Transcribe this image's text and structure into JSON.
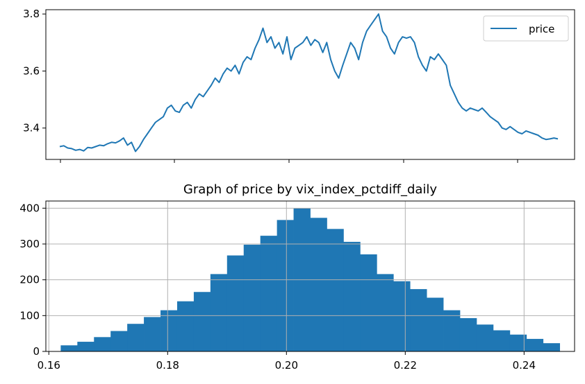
{
  "chart_data": [
    {
      "type": "line",
      "title": "",
      "xlabel": "",
      "ylabel": "",
      "legend": {
        "entries": [
          "price"
        ],
        "placement": "top-right"
      },
      "ylim": [
        3.29,
        3.815
      ],
      "yticks": [
        3.4,
        3.6,
        3.8
      ],
      "ytick_labels": [
        "3.4",
        "3.6",
        "3.8"
      ],
      "x_tick_count": 5,
      "grid": false,
      "line_color": "#1f77b4",
      "series": [
        {
          "name": "price",
          "x": [
            0,
            2,
            4,
            6,
            8,
            10,
            12,
            14,
            16,
            18,
            20,
            22,
            24,
            26,
            28,
            30,
            32,
            34,
            36,
            38,
            40,
            42,
            44,
            46,
            48,
            50,
            52,
            54,
            56,
            58,
            60,
            62,
            64,
            66,
            68,
            70,
            72,
            74,
            76,
            78,
            80,
            82,
            84,
            86,
            88,
            90,
            92,
            94,
            96,
            98,
            100,
            102,
            104,
            106,
            108,
            110,
            112,
            114,
            116,
            118,
            120,
            122,
            124,
            126,
            128,
            130,
            132,
            134,
            136,
            138,
            140,
            142,
            144,
            146,
            148,
            150,
            152,
            154,
            156,
            158,
            160,
            162,
            164,
            166,
            168,
            170,
            172,
            174,
            176,
            178,
            180,
            182,
            184,
            186,
            188,
            190,
            192,
            194,
            196,
            198,
            200,
            202,
            204,
            206,
            208,
            210,
            212,
            214,
            216,
            218,
            220,
            222,
            224,
            226,
            228,
            230,
            232,
            234,
            236,
            238,
            240,
            242,
            244,
            246,
            248,
            250
          ],
          "values": [
            3.335,
            3.338,
            3.33,
            3.328,
            3.322,
            3.325,
            3.32,
            3.332,
            3.33,
            3.335,
            3.34,
            3.338,
            3.345,
            3.35,
            3.348,
            3.355,
            3.365,
            3.34,
            3.35,
            3.318,
            3.335,
            3.36,
            3.38,
            3.4,
            3.42,
            3.43,
            3.44,
            3.47,
            3.48,
            3.46,
            3.455,
            3.48,
            3.49,
            3.47,
            3.5,
            3.52,
            3.51,
            3.53,
            3.55,
            3.575,
            3.56,
            3.59,
            3.61,
            3.6,
            3.62,
            3.59,
            3.63,
            3.65,
            3.64,
            3.68,
            3.71,
            3.75,
            3.7,
            3.72,
            3.68,
            3.7,
            3.66,
            3.72,
            3.64,
            3.68,
            3.69,
            3.7,
            3.72,
            3.69,
            3.71,
            3.7,
            3.665,
            3.7,
            3.64,
            3.6,
            3.575,
            3.62,
            3.66,
            3.7,
            3.68,
            3.64,
            3.7,
            3.74,
            3.76,
            3.78,
            3.8,
            3.74,
            3.72,
            3.68,
            3.66,
            3.7,
            3.72,
            3.715,
            3.72,
            3.7,
            3.65,
            3.62,
            3.6,
            3.65,
            3.64,
            3.66,
            3.64,
            3.62,
            3.55,
            3.52,
            3.49,
            3.47,
            3.46,
            3.47,
            3.465,
            3.46,
            3.47,
            3.455,
            3.44,
            3.43,
            3.42,
            3.4,
            3.395,
            3.405,
            3.395,
            3.385,
            3.38,
            3.39,
            3.385,
            3.38,
            3.375,
            3.365,
            3.36,
            3.362,
            3.365,
            3.362
          ]
        }
      ]
    },
    {
      "type": "bar",
      "subtype": "histogram",
      "title": "Graph of price by vix_index_pctdiff_daily",
      "xlabel": "",
      "ylabel": "",
      "xlim": [
        0.1595,
        0.2485
      ],
      "ylim": [
        0,
        420
      ],
      "xticks": [
        0.16,
        0.18,
        0.2,
        0.22,
        0.24
      ],
      "xtick_labels": [
        "0.16",
        "0.18",
        "0.20",
        "0.22",
        "0.24"
      ],
      "yticks": [
        0,
        100,
        200,
        300,
        400
      ],
      "ytick_labels": [
        "0",
        "100",
        "200",
        "300",
        "400"
      ],
      "grid": true,
      "bar_color": "#1f77b4",
      "bin_start": 0.162,
      "bin_width": 0.0028,
      "values": [
        17,
        27,
        40,
        57,
        77,
        96,
        115,
        140,
        166,
        216,
        268,
        298,
        323,
        367,
        400,
        373,
        342,
        306,
        271,
        216,
        196,
        174,
        150,
        115,
        93,
        75,
        59,
        47,
        35,
        23
      ]
    }
  ]
}
